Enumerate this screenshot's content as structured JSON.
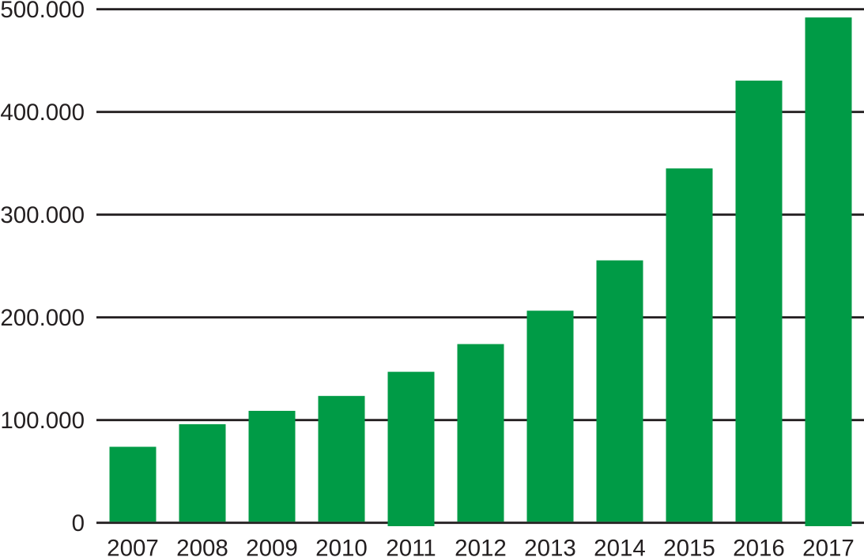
{
  "chart_data": {
    "type": "bar",
    "categories": [
      "2007",
      "2008",
      "2009",
      "2010",
      "2011",
      "2012",
      "2013",
      "2014",
      "2015",
      "2016",
      "2017"
    ],
    "values": [
      74000,
      96000,
      109000,
      123500,
      147000,
      174000,
      206500,
      255500,
      345000,
      430500,
      492000
    ],
    "ylim": [
      0,
      500000
    ],
    "ytick_interval": 100000,
    "ytick_labels": [
      "0",
      "100.000",
      "200.000",
      "300.000",
      "400.000",
      "500.000"
    ],
    "xlabel": "",
    "ylabel": "",
    "grid": "horizontal gridlines only",
    "legend_position": "none",
    "colors": {
      "bar": "#009b46",
      "gridline": "#231f20",
      "text": "#231f20",
      "background": "#ffffff"
    }
  }
}
